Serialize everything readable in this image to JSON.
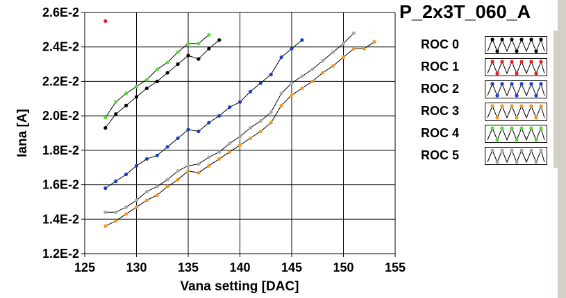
{
  "window": {
    "title": "P_2x3T_060_A"
  },
  "colors": {
    "ROC 0": "#000000",
    "ROC 1": "#dd2222",
    "ROC 2": "#1a3fc4",
    "ROC 3": "#f39a1e",
    "ROC 4": "#55dd33",
    "ROC 5": "#aaaaaa"
  },
  "chart_data": {
    "type": "line",
    "title": "P_2x3T_060_A",
    "xlabel": "Vana setting [DAC]",
    "ylabel": "Iana [A]",
    "xlim": [
      125,
      155
    ],
    "ylim": [
      0.012,
      0.026
    ],
    "xticks": [
      "125",
      "130",
      "135",
      "140",
      "145",
      "150",
      "155"
    ],
    "yticks": [
      "1.2E-2",
      "1.4E-2",
      "1.6E-2",
      "1.8E-2",
      "2.0E-2",
      "2.2E-2",
      "2.4E-2",
      "2.6E-2"
    ],
    "grid": true,
    "legend": [
      "ROC 0",
      "ROC 1",
      "ROC 2",
      "ROC 3",
      "ROC 4",
      "ROC 5"
    ],
    "series": [
      {
        "name": "ROC 0",
        "x": [
          127,
          128,
          129,
          130,
          131,
          132,
          133,
          134,
          135,
          136,
          137,
          138
        ],
        "y": [
          0.0193,
          0.0201,
          0.0206,
          0.0211,
          0.0216,
          0.022,
          0.0225,
          0.023,
          0.0235,
          0.0233,
          0.0239,
          0.0244
        ]
      },
      {
        "name": "ROC 1",
        "x": [
          127
        ],
        "y": [
          0.0255
        ]
      },
      {
        "name": "ROC 2",
        "x": [
          127,
          128,
          129,
          130,
          131,
          132,
          133,
          134,
          135,
          136,
          137,
          138,
          139,
          140,
          141,
          142,
          143,
          144,
          145,
          146
        ],
        "y": [
          0.0158,
          0.0162,
          0.0166,
          0.0171,
          0.0175,
          0.0177,
          0.0182,
          0.0187,
          0.0192,
          0.0191,
          0.0196,
          0.02,
          0.0205,
          0.0208,
          0.0214,
          0.0219,
          0.0224,
          0.0234,
          0.0239,
          0.0244
        ]
      },
      {
        "name": "ROC 3",
        "x": [
          127,
          128,
          129,
          130,
          131,
          132,
          133,
          134,
          135,
          136,
          137,
          138,
          139,
          140,
          141,
          142,
          143,
          144,
          145,
          146,
          147,
          148,
          149,
          150,
          151,
          152,
          153
        ],
        "y": [
          0.0136,
          0.0139,
          0.0143,
          0.0147,
          0.0151,
          0.0154,
          0.0159,
          0.0163,
          0.0168,
          0.0167,
          0.0171,
          0.0175,
          0.0179,
          0.0183,
          0.0187,
          0.0191,
          0.0196,
          0.0206,
          0.0212,
          0.0216,
          0.022,
          0.0225,
          0.0229,
          0.0234,
          0.0239,
          0.0239,
          0.0243
        ]
      },
      {
        "name": "ROC 4",
        "x": [
          127,
          128,
          129,
          130,
          131,
          132,
          133,
          134,
          135,
          136,
          137
        ],
        "y": [
          0.0199,
          0.0208,
          0.0213,
          0.0217,
          0.0221,
          0.0227,
          0.0231,
          0.0237,
          0.0242,
          0.0242,
          0.0247
        ]
      },
      {
        "name": "ROC 5",
        "x": [
          127,
          128,
          129,
          130,
          131,
          132,
          133,
          134,
          135,
          136,
          137,
          138,
          139,
          140,
          141,
          142,
          143,
          144,
          145,
          146,
          147,
          148,
          149,
          150,
          151
        ],
        "y": [
          0.0144,
          0.0144,
          0.0147,
          0.0151,
          0.0156,
          0.0159,
          0.0163,
          0.0168,
          0.0171,
          0.0172,
          0.0176,
          0.0179,
          0.0184,
          0.0188,
          0.0193,
          0.0197,
          0.0202,
          0.0213,
          0.0219,
          0.0223,
          0.0227,
          0.0232,
          0.0237,
          0.0242,
          0.0248
        ]
      }
    ]
  }
}
